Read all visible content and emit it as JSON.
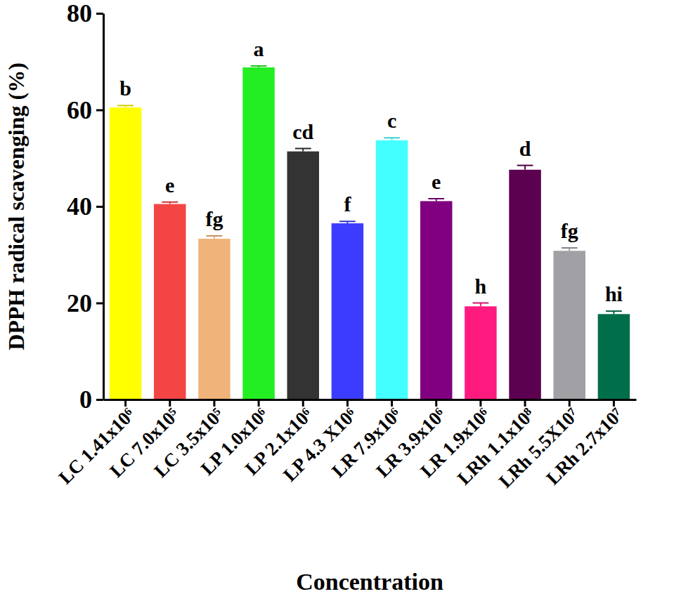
{
  "chart_data": {
    "type": "bar",
    "x_label": "Concentration",
    "y_label": "DPPH radical scavenging (%)",
    "categories": [
      "LC 1.41x10⁶",
      "LC 7.0x10⁵",
      "LC 3.5x10⁵",
      "LP 1.0x10⁶",
      "LP 2.1x10⁶",
      "LP 4.3 X10⁶",
      "LR 7.9x10⁶",
      "LR 3.9x10⁶",
      "LR 1.9x10⁶",
      "LRh 1.1x10⁸",
      "LRh 5.5X10⁷",
      "LRh 2.7x10⁷"
    ],
    "values": [
      60.5,
      40.5,
      33.3,
      68.8,
      51.4,
      36.5,
      53.7,
      41.1,
      19.3,
      47.6,
      30.8,
      17.7
    ],
    "errors": [
      0.4,
      0.4,
      0.6,
      0.3,
      0.6,
      0.4,
      0.5,
      0.5,
      0.7,
      0.9,
      0.6,
      0.6
    ],
    "annotations": [
      "b",
      "e",
      "fg",
      "a",
      "cd",
      "f",
      "c",
      "e",
      "h",
      "d",
      "fg",
      "hi"
    ],
    "colors": [
      "#ffff00",
      "#f44545",
      "#f0b47a",
      "#22ee22",
      "#333333",
      "#3c3cff",
      "#44ffff",
      "#800080",
      "#ff1a80",
      "#5c0050",
      "#a0a0a5",
      "#006e4a"
    ],
    "ylim": [
      0,
      80
    ],
    "yticks": [
      0,
      20,
      40,
      60,
      80
    ],
    "grid": false
  }
}
